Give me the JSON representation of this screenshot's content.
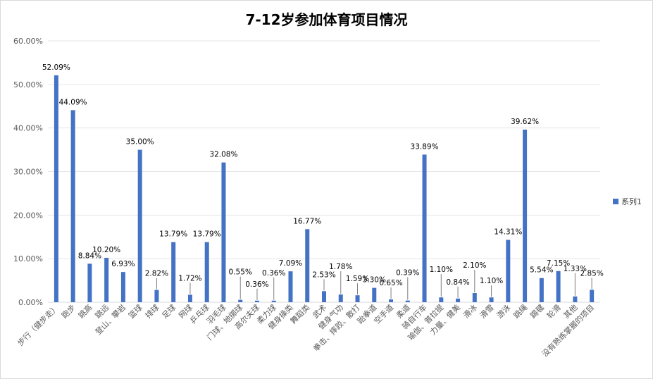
{
  "chart_data": {
    "type": "bar",
    "title": "7-12岁参加体育项目情况",
    "xlabel": "",
    "ylabel": "",
    "ylim": [
      0,
      60
    ],
    "yticks": [
      "0.00%",
      "10.00%",
      "20.00%",
      "30.00%",
      "40.00%",
      "50.00%",
      "60.00%"
    ],
    "grid": true,
    "legend_position": "right",
    "bar_color": "#4472C4",
    "categories": [
      "步行（健步走）",
      "跑步",
      "跳高",
      "跳远",
      "登山、攀岩",
      "篮球",
      "排球",
      "足球",
      "网球",
      "乒乓球",
      "羽毛球",
      "门球、地掷球",
      "高尔夫球",
      "柔力球",
      "健身操类",
      "舞蹈类",
      "武术",
      "健身气功",
      "拳击、摔跤、散打",
      "跆拳道",
      "空手道",
      "柔道",
      "骑自行车",
      "瑜伽、普拉提",
      "力量、健美",
      "滑冰",
      "滑雪",
      "游泳",
      "跳绳",
      "踢毽",
      "轮滑",
      "其他",
      "没有熟练掌握的项目"
    ],
    "series": [
      {
        "name": "系列1",
        "values": [
          52.09,
          44.09,
          8.84,
          10.2,
          6.93,
          35.0,
          2.82,
          13.79,
          1.72,
          13.79,
          32.08,
          0.55,
          0.36,
          0.36,
          7.09,
          16.77,
          2.53,
          1.78,
          1.59,
          3.3,
          0.65,
          0.39,
          33.89,
          1.1,
          0.84,
          2.1,
          1.1,
          14.31,
          39.62,
          5.54,
          7.15,
          1.33,
          2.85
        ],
        "labels": [
          "52.09%",
          "44.09%",
          "8.84%",
          "10.20%",
          "6.93%",
          "35.00%",
          "2.82%",
          "13.79%",
          "1.72%",
          "13.79%",
          "32.08%",
          "0.55%",
          "0.36%",
          "0.36%",
          "7.09%",
          "16.77%",
          "2.53%",
          "1.78%",
          "1.59%",
          "3.30%",
          "0.65%",
          "0.39%",
          "33.89%",
          "1.10%",
          "0.84%",
          "2.10%",
          "1.10%",
          "14.31%",
          "39.62%",
          "5.54%",
          "7.15%",
          "1.33%",
          "2.85%"
        ]
      }
    ]
  }
}
